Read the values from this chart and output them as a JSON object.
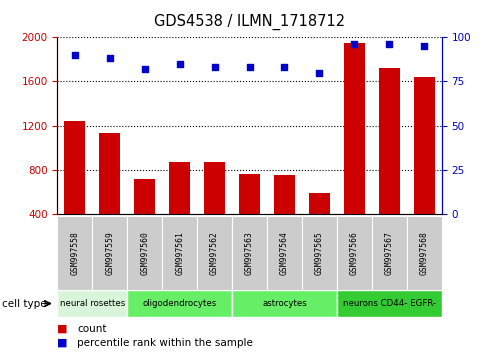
{
  "title": "GDS4538 / ILMN_1718712",
  "samples": [
    "GSM997558",
    "GSM997559",
    "GSM997560",
    "GSM997561",
    "GSM997562",
    "GSM997563",
    "GSM997564",
    "GSM997565",
    "GSM997566",
    "GSM997567",
    "GSM997568"
  ],
  "counts": [
    1240,
    1130,
    720,
    870,
    870,
    760,
    750,
    590,
    1950,
    1720,
    1640
  ],
  "percentiles": [
    90,
    88,
    82,
    85,
    83,
    83,
    83,
    80,
    96,
    96,
    95
  ],
  "cell_types": [
    {
      "label": "neural rosettes",
      "start": 0,
      "end": 2,
      "color": "#d9f5d9"
    },
    {
      "label": "oligodendrocytes",
      "start": 2,
      "end": 5,
      "color": "#66ee66"
    },
    {
      "label": "astrocytes",
      "start": 5,
      "end": 8,
      "color": "#66ee66"
    },
    {
      "label": "neurons CD44- EGFR-",
      "start": 8,
      "end": 11,
      "color": "#33cc33"
    }
  ],
  "ylim_left": [
    400,
    2000
  ],
  "yticks_left": [
    400,
    800,
    1200,
    1600,
    2000
  ],
  "ylim_right": [
    0,
    100
  ],
  "yticks_right": [
    0,
    25,
    50,
    75,
    100
  ],
  "bar_color": "#cc0000",
  "dot_color": "#0000cc",
  "grid_color": "#000000",
  "axis_left_color": "#cc0000",
  "axis_right_color": "#0000cc",
  "bg_color": "#ffffff",
  "sample_bg_color": "#cccccc",
  "legend_count_color": "#cc0000",
  "legend_pct_color": "#0000cc",
  "fig_width": 4.99,
  "fig_height": 3.54,
  "dpi": 100
}
